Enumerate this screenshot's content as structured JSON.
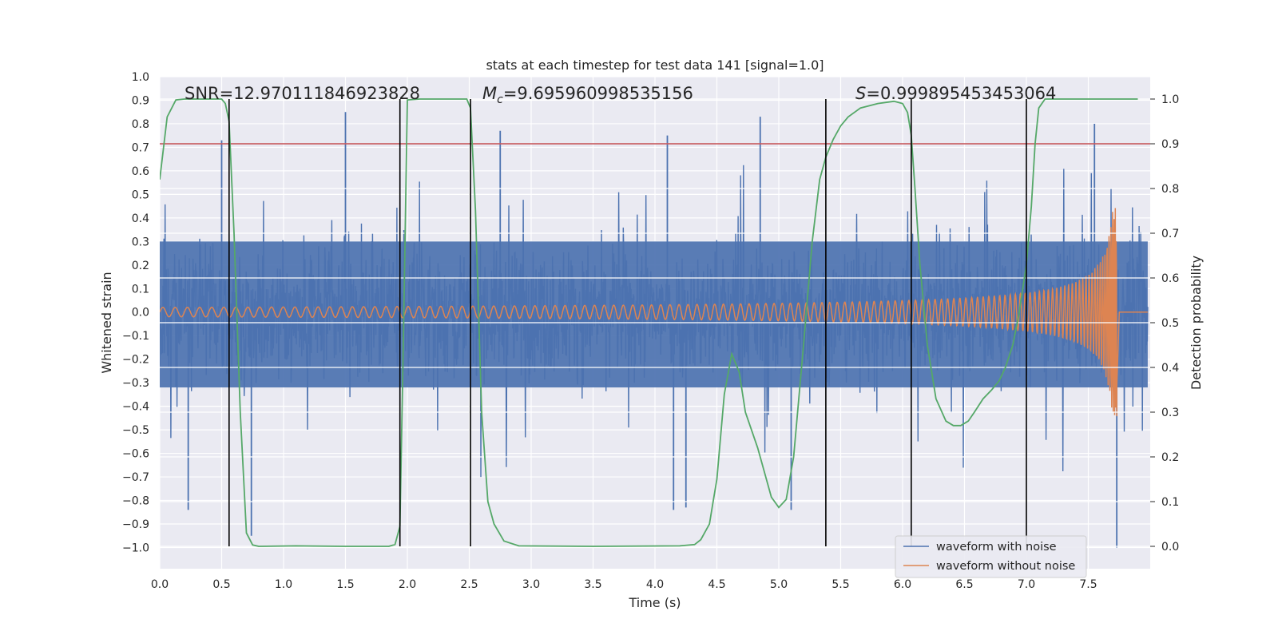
{
  "chart_data": {
    "type": "line",
    "title": "stats at each timestep for test data 141 [signal=1.0]",
    "xlabel": "Time (s)",
    "ylabel_left": "Whitened strain",
    "ylabel_right": "Detection probability",
    "xlim": [
      0.0,
      8.0
    ],
    "ylim_left": [
      -1.09,
      1.0
    ],
    "ylim_right": [
      -0.05,
      1.05
    ],
    "x_ticks": [
      "0.0",
      "0.5",
      "1.0",
      "1.5",
      "2.0",
      "2.5",
      "3.0",
      "3.5",
      "4.0",
      "4.5",
      "5.0",
      "5.5",
      "6.0",
      "6.5",
      "7.0",
      "7.5"
    ],
    "y_ticks_left": [
      "1.0",
      "0.9",
      "0.8",
      "0.7",
      "0.6",
      "0.5",
      "0.4",
      "0.3",
      "0.2",
      "0.1",
      "0.0",
      "−0.1",
      "−0.2",
      "−0.3",
      "−0.4",
      "−0.5",
      "−0.6",
      "−0.7",
      "−0.8",
      "−0.9",
      "−1.0"
    ],
    "y_ticks_right": [
      "1.0",
      "0.9",
      "0.8",
      "0.7",
      "0.6",
      "0.5",
      "0.4",
      "0.3",
      "0.2",
      "0.1",
      "0.0"
    ],
    "grid": true,
    "legend_position": "bottom-right",
    "annotations": {
      "snr": "SNR=12.970111846923828",
      "mc": "=9.695960998535156",
      "mc_symbol": "M",
      "mc_sub": "c",
      "s": "=0.999895453453064",
      "s_symbol": "S"
    },
    "threshold_right": 0.9,
    "vertical_lines_x": [
      0.56,
      1.94,
      2.51,
      5.38,
      6.07,
      7.0
    ],
    "series": [
      {
        "name": "waveform with noise",
        "color": "#4c72b0",
        "envelope_min": -0.45,
        "envelope_max": 0.45,
        "end_time": 7.73,
        "extremes": [
          {
            "x": 0.23,
            "y": -0.84
          },
          {
            "x": 0.5,
            "y": 0.73
          },
          {
            "x": 0.74,
            "y": -0.95
          },
          {
            "x": 1.5,
            "y": 0.85
          },
          {
            "x": 2.75,
            "y": 0.77
          },
          {
            "x": 4.1,
            "y": 0.75
          },
          {
            "x": 4.15,
            "y": -0.84
          },
          {
            "x": 4.25,
            "y": -0.83
          },
          {
            "x": 4.85,
            "y": 0.83
          },
          {
            "x": 5.1,
            "y": -0.84
          },
          {
            "x": 7.55,
            "y": 0.8
          },
          {
            "x": 7.73,
            "y": -1.0
          }
        ]
      },
      {
        "name": "waveform without noise",
        "color": "#dd8452",
        "amplitude_start": 0.02,
        "amplitude_peak": 0.45,
        "peak_time": 7.72,
        "min_at_end": -0.32,
        "end_time": 7.73
      },
      {
        "name": "detection probability",
        "color": "#55a868",
        "x": [
          0.0,
          0.06,
          0.13,
          0.2,
          0.3,
          0.5,
          0.53,
          0.56,
          0.6,
          0.65,
          0.7,
          0.75,
          0.8,
          1.1,
          1.5,
          1.85,
          1.9,
          1.94,
          1.97,
          2.0,
          2.1,
          2.2,
          2.48,
          2.51,
          2.55,
          2.6,
          2.65,
          2.7,
          2.78,
          2.9,
          3.5,
          4.2,
          4.32,
          4.37,
          4.44,
          4.47,
          4.5,
          4.56,
          4.62,
          4.68,
          4.73,
          4.83,
          4.94,
          5.0,
          5.06,
          5.12,
          5.2,
          5.27,
          5.33,
          5.38,
          5.44,
          5.5,
          5.56,
          5.66,
          5.8,
          5.93,
          6.0,
          6.04,
          6.07,
          6.1,
          6.14,
          6.2,
          6.27,
          6.35,
          6.41,
          6.47,
          6.53,
          6.58,
          6.65,
          6.72,
          6.78,
          6.83,
          6.89,
          6.94,
          7.0,
          7.04,
          7.07,
          7.1,
          7.15,
          7.22,
          7.5,
          7.9
        ],
        "y": [
          0.82,
          0.96,
          0.998,
          1.0,
          1.0,
          1.0,
          0.99,
          0.95,
          0.7,
          0.3,
          0.03,
          0.003,
          0.0,
          0.001,
          0.0,
          0.0,
          0.004,
          0.045,
          0.5,
          0.998,
          1.0,
          1.0,
          1.0,
          0.98,
          0.75,
          0.3,
          0.1,
          0.05,
          0.012,
          0.001,
          0.0,
          0.001,
          0.004,
          0.015,
          0.05,
          0.1,
          0.15,
          0.34,
          0.43,
          0.39,
          0.3,
          0.22,
          0.11,
          0.087,
          0.105,
          0.2,
          0.45,
          0.68,
          0.82,
          0.87,
          0.91,
          0.94,
          0.96,
          0.98,
          0.99,
          0.995,
          0.99,
          0.97,
          0.92,
          0.8,
          0.63,
          0.45,
          0.33,
          0.28,
          0.27,
          0.27,
          0.28,
          0.3,
          0.33,
          0.35,
          0.37,
          0.4,
          0.45,
          0.52,
          0.63,
          0.76,
          0.9,
          0.98,
          1.0,
          1.0,
          1.0,
          1.0
        ]
      },
      {
        "name": "threshold",
        "color": "#c44e52"
      }
    ]
  }
}
